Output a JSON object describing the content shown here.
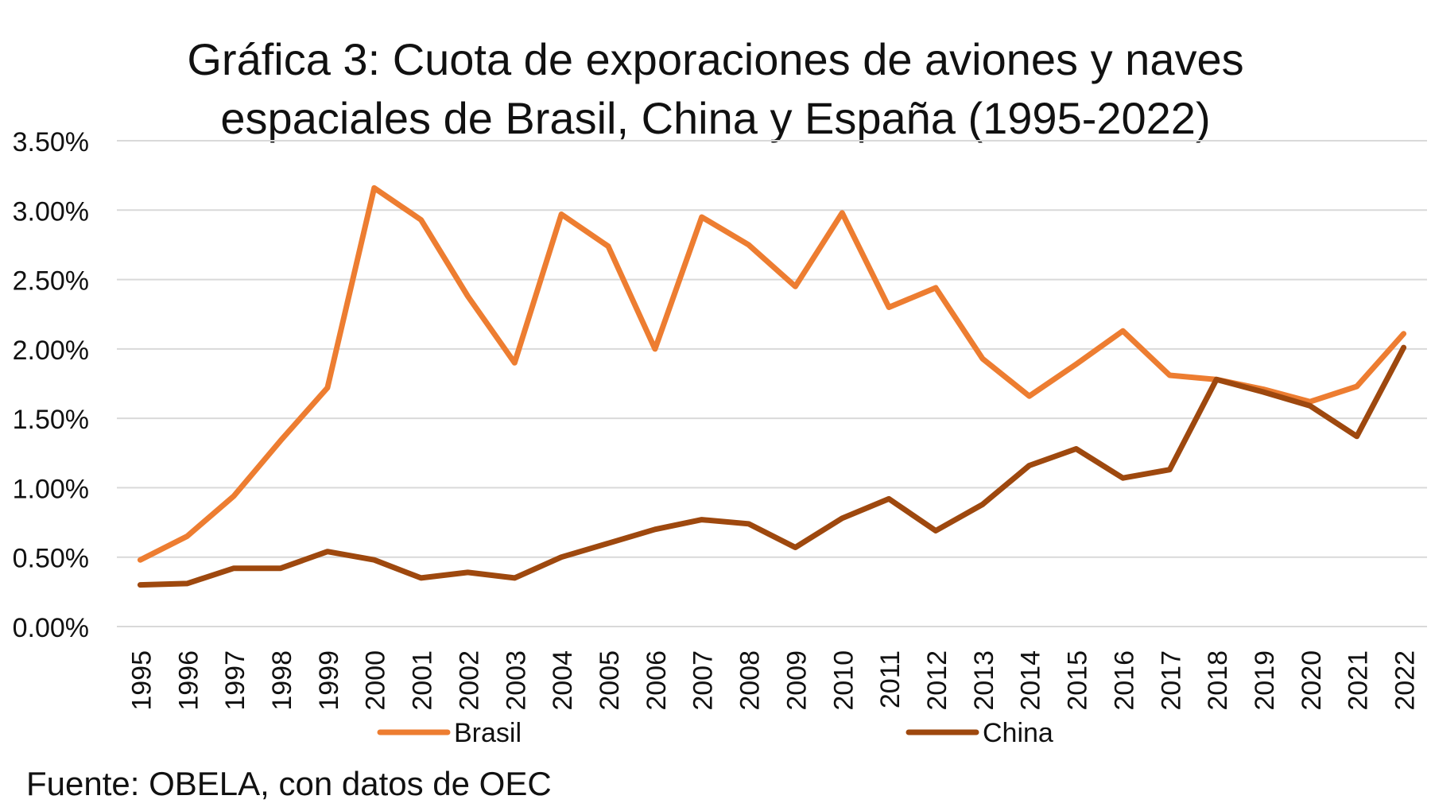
{
  "chart_data": {
    "type": "line",
    "title": "Gráfica 3: Cuota de exporaciones de  aviones y naves espaciales de Brasil, China y España (1995-2022)",
    "xlabel": "",
    "ylabel": "",
    "ylim": [
      0,
      0.035
    ],
    "yticks": [
      "0.00%",
      "0.50%",
      "1.00%",
      "1.50%",
      "2.00%",
      "2.50%",
      "3.00%",
      "3.50%"
    ],
    "categories": [
      "1995",
      "1996",
      "1997",
      "1998",
      "1999",
      "2000",
      "2001",
      "2002",
      "2003",
      "2004",
      "2005",
      "2006",
      "2007",
      "2008",
      "2009",
      "2010",
      "2011",
      "2012",
      "2013",
      "2014",
      "2015",
      "2016",
      "2017",
      "2018",
      "2019",
      "2020",
      "2021",
      "2022"
    ],
    "series": [
      {
        "name": "Brasil",
        "color": "#ED7D31",
        "values": [
          0.0048,
          0.0065,
          0.0094,
          0.0134,
          0.0172,
          0.0316,
          0.0293,
          0.0238,
          0.019,
          0.0297,
          0.0274,
          0.02,
          0.0295,
          0.0275,
          0.0245,
          0.0298,
          0.023,
          0.0244,
          0.0193,
          0.0166,
          0.0189,
          0.0213,
          0.0181,
          0.0178,
          0.0171,
          0.0162,
          0.0173,
          0.0211
        ]
      },
      {
        "name": "China",
        "color": "#9E480E",
        "values": [
          0.003,
          0.0031,
          0.0042,
          0.0042,
          0.0054,
          0.0048,
          0.0035,
          0.0039,
          0.0035,
          0.005,
          0.006,
          0.007,
          0.0077,
          0.0074,
          0.0057,
          0.0078,
          0.0092,
          0.0069,
          0.0088,
          0.0116,
          0.0128,
          0.0107,
          0.0113,
          0.0178,
          0.0169,
          0.0159,
          0.0137,
          0.0201
        ]
      }
    ],
    "grid": true,
    "legend_position": "bottom"
  },
  "source": "Fuente: OBELA, con datos de OEC"
}
